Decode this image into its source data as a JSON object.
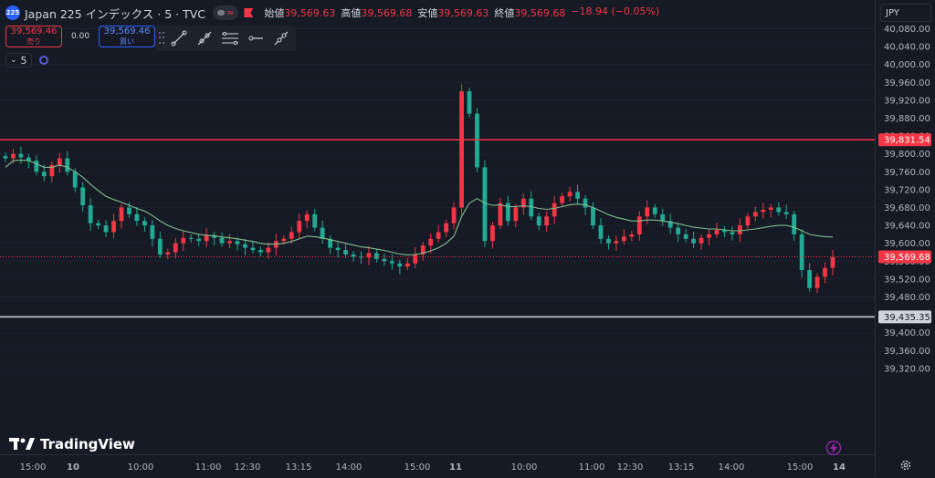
{
  "header": {
    "symbol_badge": "225",
    "title": "Japan 225 インデックス · 5 · TVC",
    "ohlc": [
      {
        "label": "始値",
        "value": "39,569.63"
      },
      {
        "label": "高値",
        "value": "39,569.68"
      },
      {
        "label": "安値",
        "value": "39,569.63"
      },
      {
        "label": "終値",
        "value": "39,569.68"
      },
      {
        "label": "",
        "value": "−18.94 (−0.05%)"
      }
    ]
  },
  "trade": {
    "sell_price": "39,569.46",
    "sell_label": "売り",
    "spread": "0.00",
    "buy_price": "39,569.46",
    "buy_label": "買い"
  },
  "toolbar_icons": [
    "trend-line-icon",
    "ray-icon",
    "parallel-channel-icon",
    "horizontal-ray-icon",
    "extended-line-icon"
  ],
  "indicator": {
    "interval": "5"
  },
  "currency": "JPY",
  "brand": "TradingView",
  "colors": {
    "up": "#f23645",
    "down": "#22ab94",
    "ma": "#7fbf8f",
    "background": "#161a25"
  },
  "chart_data": {
    "type": "candlestick",
    "price_levels": [
      "40,080.00",
      "40,040.00",
      "40,000.00",
      "39,960.00",
      "39,920.00",
      "39,880.00",
      "39,840.00",
      "39,800.00",
      "39,760.00",
      "39,720.00",
      "39,680.00",
      "39,640.00",
      "39,600.00",
      "39,560.00",
      "39,520.00",
      "39,480.00",
      "39,440.00",
      "39,400.00",
      "39,360.00",
      "39,320.00"
    ],
    "ylim": [
      39290,
      40100
    ],
    "x_ticks": [
      "15:00",
      "10",
      "10:00",
      "11:00",
      "12:30",
      "13:15",
      "14:00",
      "15:00",
      "11",
      "10:00",
      "11:00",
      "12:30",
      "13:15",
      "14:00",
      "15:00",
      "14"
    ],
    "horizontal_lines": [
      {
        "value": 39831.54,
        "label": "39,831.54",
        "color": "#f23645"
      },
      {
        "value": 39435.35,
        "label": "39,435.35",
        "color": "#d1d4dc"
      }
    ],
    "last_price": {
      "value": 39569.68,
      "label": "39,569.68",
      "color": "#f23645"
    },
    "close_series": [
      39790,
      39800,
      39792,
      39785,
      39760,
      39750,
      39775,
      39790,
      39760,
      39725,
      39685,
      39645,
      39640,
      39625,
      39650,
      39680,
      39665,
      39650,
      39640,
      39610,
      39575,
      39580,
      39600,
      39612,
      39610,
      39605,
      39618,
      39612,
      39600,
      39605,
      39598,
      39590,
      39585,
      39580,
      39590,
      39605,
      39610,
      39625,
      39650,
      39665,
      39635,
      39610,
      39590,
      39585,
      39575,
      39570,
      39568,
      39578,
      39565,
      39560,
      39555,
      39548,
      39555,
      39575,
      39595,
      39610,
      39625,
      39645,
      39680,
      39940,
      39890,
      39770,
      39605,
      39640,
      39690,
      39650,
      39680,
      39700,
      39660,
      39640,
      39660,
      39690,
      39705,
      39715,
      39700,
      39680,
      39640,
      39610,
      39600,
      39605,
      39615,
      39620,
      39660,
      39680,
      39665,
      39650,
      39635,
      39620,
      39610,
      39600,
      39612,
      39620,
      39630,
      39625,
      39620,
      39640,
      39660,
      39670,
      39675,
      39680,
      39670,
      39665,
      39620,
      39540,
      39500,
      39525,
      39545,
      39569
    ],
    "ma_series": [
      39770,
      39785,
      39786,
      39785,
      39778,
      39770,
      39770,
      39775,
      39770,
      39760,
      39748,
      39732,
      39718,
      39705,
      39698,
      39692,
      39685,
      39678,
      39672,
      39662,
      39650,
      39640,
      39633,
      39628,
      39624,
      39620,
      39618,
      39617,
      39614,
      39612,
      39610,
      39607,
      39604,
      39600,
      39598,
      39598,
      39600,
      39604,
      39610,
      39616,
      39615,
      39612,
      39608,
      39604,
      39600,
      39596,
      39592,
      39590,
      39587,
      39584,
      39580,
      39576,
      39574,
      39575,
      39578,
      39583,
      39590,
      39600,
      39616,
      39660,
      39690,
      39700,
      39690,
      39685,
      39686,
      39682,
      39682,
      39684,
      39682,
      39678,
      39676,
      39678,
      39682,
      39686,
      39688,
      39686,
      39680,
      39672,
      39664,
      39658,
      39654,
      39650,
      39650,
      39652,
      39652,
      39650,
      39647,
      39644,
      39640,
      39636,
      39634,
      39632,
      39632,
      39630,
      39628,
      39628,
      39630,
      39632,
      39635,
      39638,
      39640,
      39640,
      39636,
      39628,
      39620,
      39617,
      39615,
      39614
    ]
  }
}
